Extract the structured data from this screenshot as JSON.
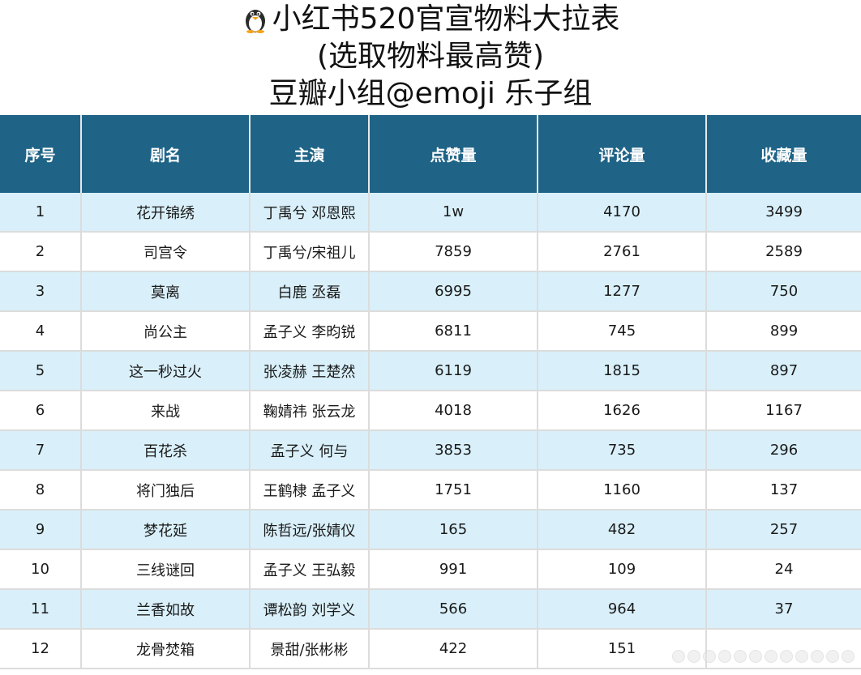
{
  "title": {
    "line1": "小红书520官宣物料大拉表",
    "line2": "(选取物料最高赞)",
    "line3": "豆瓣小组@emoji 乐子组"
  },
  "table": {
    "columns": [
      "序号",
      "剧名",
      "主演",
      "点赞量",
      "评论量",
      "收藏量"
    ],
    "rows": [
      [
        "1",
        "花开锦绣",
        "丁禹兮 邓恩熙",
        "1w",
        "4170",
        "3499"
      ],
      [
        "2",
        "司宫令",
        "丁禹兮/宋祖儿",
        "7859",
        "2761",
        "2589"
      ],
      [
        "3",
        "莫离",
        "白鹿  丞磊",
        "6995",
        "1277",
        "750"
      ],
      [
        "4",
        "尚公主",
        "孟子义 李昀锐",
        "6811",
        "745",
        "899"
      ],
      [
        "5",
        "这一秒过火",
        "张凌赫 王楚然",
        "6119",
        "1815",
        "897"
      ],
      [
        "6",
        "来战",
        "鞠婧祎 张云龙",
        "4018",
        "1626",
        "1167"
      ],
      [
        "7",
        "百花杀",
        "孟子义 何与",
        "3853",
        "735",
        "296"
      ],
      [
        "8",
        "将门独后",
        "王鹤棣 孟子义",
        "1751",
        "1160",
        "137"
      ],
      [
        "9",
        "梦花延",
        "陈哲远/张婧仪",
        "165",
        "482",
        "257"
      ],
      [
        "10",
        "三线谜回",
        "孟子义 王弘毅",
        "991",
        "109",
        "24"
      ],
      [
        "11",
        "兰香如故",
        "谭松韵 刘学义",
        "566",
        "964",
        "37"
      ],
      [
        "12",
        "龙骨焚箱",
        "景甜/张彬彬",
        "422",
        "151",
        ""
      ]
    ]
  },
  "icons": {
    "title_icon": "penguin-emoji-icon",
    "watermark": "watermark-dots-icon"
  },
  "colors": {
    "header_bg": "#1f6487",
    "stripe_bg": "#d9f0fa"
  }
}
